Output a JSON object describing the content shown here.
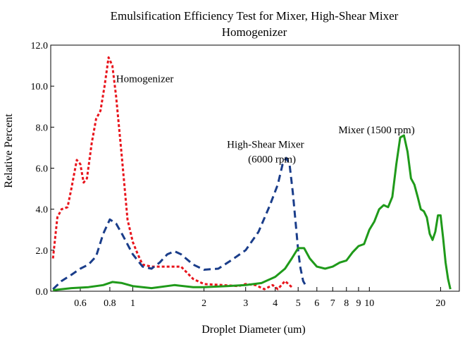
{
  "chart_data": {
    "type": "line",
    "title_lines": [
      "Emulsification Efficiency Test for Mixer,  High-Shear Mixer",
      "Homogenizer"
    ],
    "xlabel": "Droplet Diameter (um)",
    "ylabel": "Relative Percent",
    "x_scale": "log",
    "xlim": [
      0.45,
      24
    ],
    "ylim": [
      0,
      12
    ],
    "x_ticks": [
      {
        "value": 0.6,
        "label": "0.6"
      },
      {
        "value": 0.8,
        "label": "0.8"
      },
      {
        "value": 1,
        "label": "1"
      },
      {
        "value": 2,
        "label": "2"
      },
      {
        "value": 3,
        "label": "3"
      },
      {
        "value": 4,
        "label": "4"
      },
      {
        "value": 5,
        "label": "5"
      },
      {
        "value": 6,
        "label": "6"
      },
      {
        "value": 7,
        "label": "7"
      },
      {
        "value": 8,
        "label": "8"
      },
      {
        "value": 9,
        "label": "9"
      },
      {
        "value": 10,
        "label": "10"
      },
      {
        "value": 20,
        "label": "20"
      }
    ],
    "y_ticks": [
      {
        "value": 0,
        "label": "0.0"
      },
      {
        "value": 2,
        "label": "2.0"
      },
      {
        "value": 4,
        "label": "4.0"
      },
      {
        "value": 6,
        "label": "6.0"
      },
      {
        "value": 8,
        "label": "8.0"
      },
      {
        "value": 10,
        "label": "10.0"
      },
      {
        "value": 12,
        "label": "12.0"
      }
    ],
    "grid": false,
    "series": [
      {
        "name": "Homogenizer",
        "color": "#e8141c",
        "dash": "short",
        "points": [
          [
            0.46,
            1.6
          ],
          [
            0.48,
            3.6
          ],
          [
            0.5,
            4.0
          ],
          [
            0.53,
            4.1
          ],
          [
            0.55,
            5.0
          ],
          [
            0.58,
            6.4
          ],
          [
            0.6,
            6.2
          ],
          [
            0.62,
            5.3
          ],
          [
            0.64,
            5.5
          ],
          [
            0.67,
            7.2
          ],
          [
            0.7,
            8.4
          ],
          [
            0.73,
            8.8
          ],
          [
            0.76,
            10.0
          ],
          [
            0.79,
            11.4
          ],
          [
            0.82,
            11.0
          ],
          [
            0.85,
            9.5
          ],
          [
            0.9,
            6.5
          ],
          [
            0.95,
            3.5
          ],
          [
            1.0,
            2.4
          ],
          [
            1.05,
            1.8
          ],
          [
            1.1,
            1.3
          ],
          [
            1.2,
            1.2
          ],
          [
            1.4,
            1.2
          ],
          [
            1.6,
            1.2
          ],
          [
            1.8,
            0.6
          ],
          [
            2.0,
            0.35
          ],
          [
            2.4,
            0.3
          ],
          [
            2.8,
            0.25
          ],
          [
            3.0,
            0.35
          ],
          [
            3.3,
            0.3
          ],
          [
            3.6,
            0.1
          ],
          [
            3.9,
            0.3
          ],
          [
            4.1,
            0.1
          ],
          [
            4.4,
            0.5
          ],
          [
            4.7,
            0.2
          ]
        ]
      },
      {
        "name": "High-Shear Mixer\n(6000 rpm)",
        "color": "#1a3d8a",
        "dash": "long",
        "points": [
          [
            0.46,
            0.1
          ],
          [
            0.5,
            0.5
          ],
          [
            0.55,
            0.8
          ],
          [
            0.6,
            1.1
          ],
          [
            0.65,
            1.3
          ],
          [
            0.7,
            1.7
          ],
          [
            0.75,
            2.8
          ],
          [
            0.8,
            3.5
          ],
          [
            0.85,
            3.3
          ],
          [
            0.9,
            2.8
          ],
          [
            1.0,
            1.8
          ],
          [
            1.1,
            1.2
          ],
          [
            1.2,
            1.1
          ],
          [
            1.3,
            1.4
          ],
          [
            1.4,
            1.8
          ],
          [
            1.5,
            1.95
          ],
          [
            1.6,
            1.8
          ],
          [
            1.8,
            1.3
          ],
          [
            2.0,
            1.05
          ],
          [
            2.3,
            1.1
          ],
          [
            2.6,
            1.5
          ],
          [
            3.0,
            2.0
          ],
          [
            3.4,
            2.9
          ],
          [
            3.8,
            4.2
          ],
          [
            4.1,
            5.2
          ],
          [
            4.3,
            6.2
          ],
          [
            4.45,
            6.5
          ],
          [
            4.6,
            6.2
          ],
          [
            4.75,
            4.8
          ],
          [
            4.9,
            3.1
          ],
          [
            5.0,
            2.0
          ],
          [
            5.1,
            1.2
          ],
          [
            5.25,
            0.5
          ],
          [
            5.4,
            0.25
          ]
        ]
      },
      {
        "name": "Mixer (1500 rpm)",
        "color": "#1f9a1a",
        "dash": "solid",
        "points": [
          [
            0.46,
            0.05
          ],
          [
            0.55,
            0.15
          ],
          [
            0.65,
            0.2
          ],
          [
            0.75,
            0.3
          ],
          [
            0.82,
            0.45
          ],
          [
            0.9,
            0.4
          ],
          [
            1.0,
            0.25
          ],
          [
            1.2,
            0.15
          ],
          [
            1.5,
            0.3
          ],
          [
            1.8,
            0.2
          ],
          [
            2.0,
            0.2
          ],
          [
            2.5,
            0.25
          ],
          [
            3.0,
            0.3
          ],
          [
            3.5,
            0.4
          ],
          [
            4.0,
            0.7
          ],
          [
            4.4,
            1.1
          ],
          [
            4.7,
            1.6
          ],
          [
            5.0,
            2.1
          ],
          [
            5.3,
            2.1
          ],
          [
            5.6,
            1.6
          ],
          [
            6.0,
            1.2
          ],
          [
            6.5,
            1.1
          ],
          [
            7.0,
            1.2
          ],
          [
            7.5,
            1.4
          ],
          [
            8.0,
            1.5
          ],
          [
            8.5,
            1.9
          ],
          [
            9.0,
            2.2
          ],
          [
            9.5,
            2.3
          ],
          [
            10.0,
            3.0
          ],
          [
            10.5,
            3.4
          ],
          [
            11.0,
            4.0
          ],
          [
            11.5,
            4.2
          ],
          [
            12.0,
            4.1
          ],
          [
            12.5,
            4.6
          ],
          [
            13.0,
            6.2
          ],
          [
            13.5,
            7.5
          ],
          [
            14.0,
            7.6
          ],
          [
            14.5,
            6.8
          ],
          [
            15.0,
            5.5
          ],
          [
            15.5,
            5.2
          ],
          [
            16.0,
            4.6
          ],
          [
            16.5,
            4.0
          ],
          [
            17.0,
            3.9
          ],
          [
            17.5,
            3.6
          ],
          [
            18.0,
            2.8
          ],
          [
            18.5,
            2.5
          ],
          [
            19.0,
            2.9
          ],
          [
            19.5,
            3.7
          ],
          [
            20.0,
            3.7
          ],
          [
            20.5,
            2.6
          ],
          [
            21.0,
            1.4
          ],
          [
            21.5,
            0.6
          ],
          [
            22.0,
            0.1
          ]
        ]
      }
    ],
    "annotations": [
      {
        "series": 0,
        "x": 0.85,
        "y": 10.2
      },
      {
        "series": 1,
        "x": 2.5,
        "y": 7.0
      },
      {
        "series": 2,
        "x": 7.4,
        "y": 7.7
      }
    ]
  }
}
